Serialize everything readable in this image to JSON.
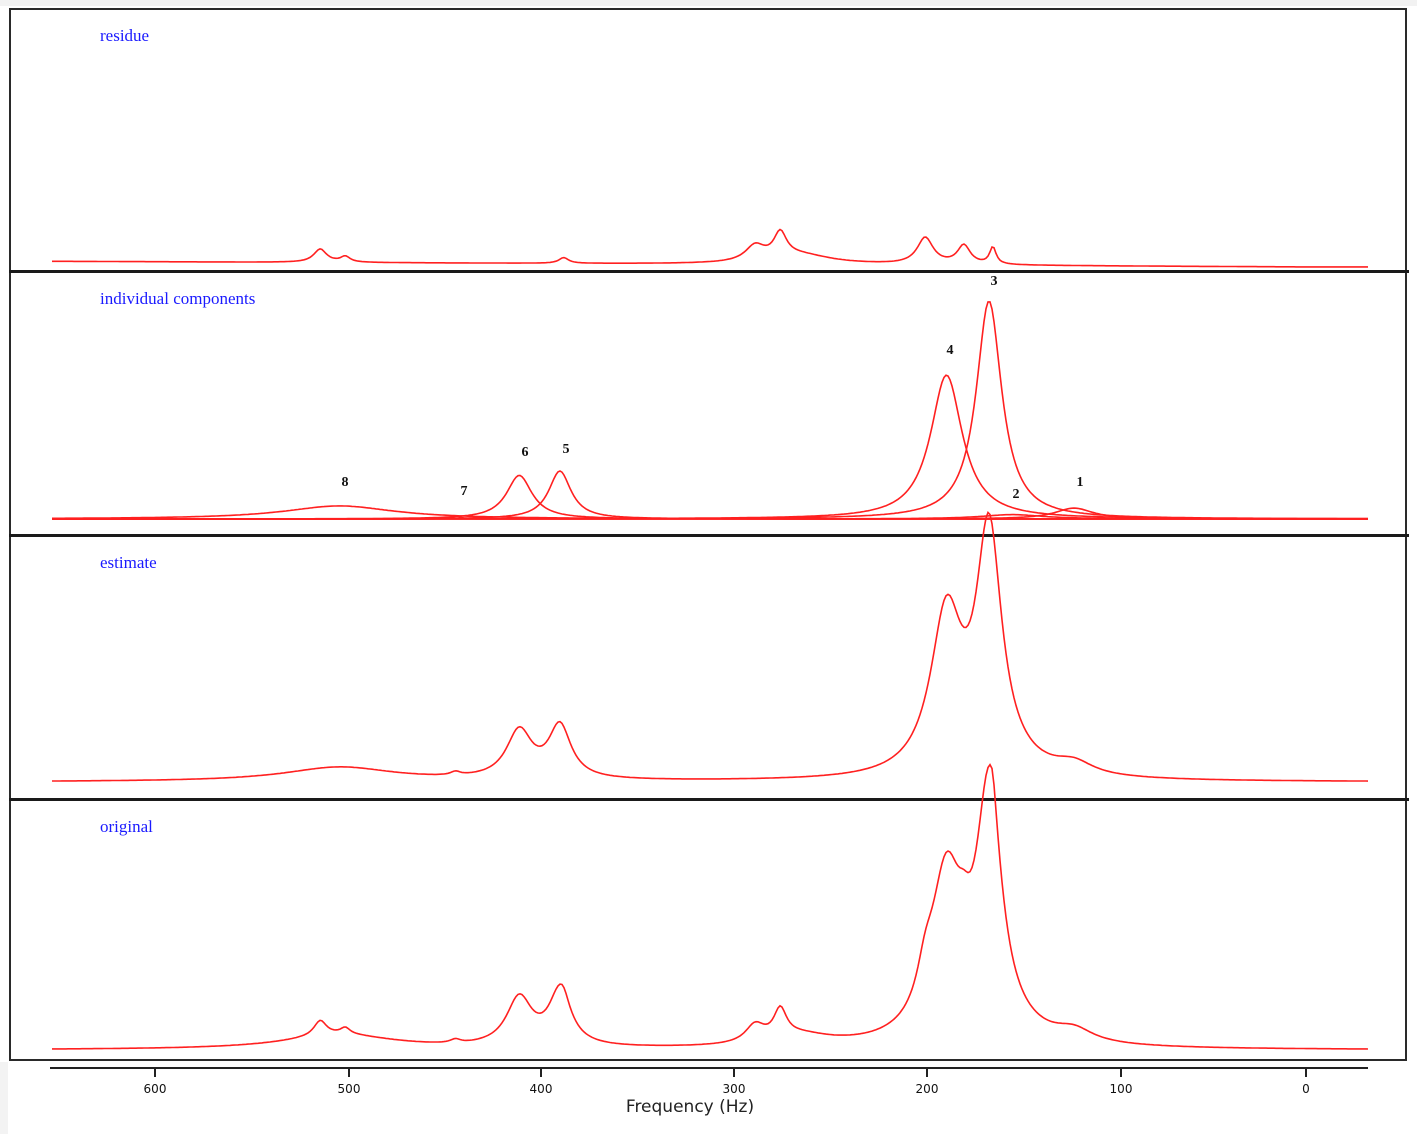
{
  "chart_data": {
    "type": "line",
    "title": "",
    "xlabel": "Frequency (Hz)",
    "ylabel": "",
    "x_axis": {
      "reversed": true,
      "xlim": [
        655,
        -30
      ],
      "ticks": [
        600,
        500,
        400,
        300,
        200,
        100,
        0
      ]
    },
    "grid": false,
    "legend": null,
    "line_color": "#ff2020",
    "label_color": "#1a1aff",
    "panels": [
      {
        "name": "residue",
        "label": "residue",
        "baseline": 0.02,
        "peaks": [
          {
            "f": 510,
            "h": 0.07,
            "w": 4
          },
          {
            "f": 497,
            "h": 0.03,
            "w": 3
          },
          {
            "f": 384,
            "h": 0.03,
            "w": 3
          },
          {
            "f": 285,
            "h": 0.08,
            "w": 6
          },
          {
            "f": 272,
            "h": 0.13,
            "w": 4
          },
          {
            "f": 262,
            "h": 0.05,
            "w": 20
          },
          {
            "f": 197,
            "h": 0.14,
            "w": 5
          },
          {
            "f": 177,
            "h": 0.1,
            "w": 4
          },
          {
            "f": 162,
            "h": 0.09,
            "w": 2
          }
        ],
        "notes": "small residual bumps near 510, 272, 197, 177, 162 Hz"
      },
      {
        "name": "individual components",
        "label": "individual components",
        "components": [
          {
            "id": "1",
            "f": 120,
            "h": 0.05,
            "w": 12
          },
          {
            "id": "2",
            "f": 152,
            "h": 0.02,
            "w": 20
          },
          {
            "id": "3",
            "f": 164,
            "h": 1.0,
            "w": 8
          },
          {
            "id": "4",
            "f": 186,
            "h": 0.66,
            "w": 10
          },
          {
            "id": "5",
            "f": 386,
            "h": 0.22,
            "w": 7
          },
          {
            "id": "6",
            "f": 407,
            "h": 0.2,
            "w": 8
          },
          {
            "id": "7",
            "f": 440,
            "h": 0.015,
            "w": 3
          },
          {
            "id": "8",
            "f": 500,
            "h": 0.06,
            "w": 35
          }
        ]
      },
      {
        "name": "estimate",
        "label": "estimate",
        "notes": "sum of individual components"
      },
      {
        "name": "original",
        "label": "original",
        "notes": "measured spectrum = estimate + residue"
      }
    ]
  },
  "panels": {
    "residue": {
      "label": "residue"
    },
    "components": {
      "label": "individual components",
      "peak_labels": [
        "1",
        "2",
        "3",
        "4",
        "5",
        "6",
        "7",
        "8"
      ]
    },
    "estimate": {
      "label": "estimate"
    },
    "original": {
      "label": "original"
    }
  },
  "axis": {
    "ticks": [
      "600",
      "500",
      "400",
      "300",
      "200",
      "100",
      "0"
    ],
    "xlabel": "Frequency (Hz)"
  }
}
